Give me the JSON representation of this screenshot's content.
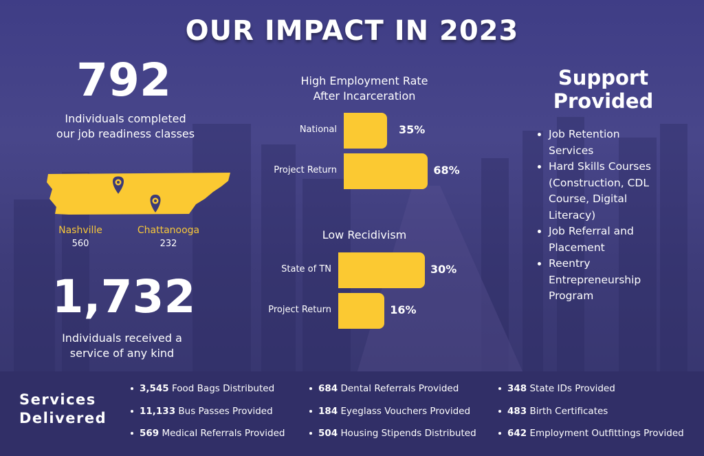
{
  "title": "OUR IMPACT IN 2023",
  "completed": {
    "number": "792",
    "line1": "Individuals completed",
    "line2": "our job readiness classes"
  },
  "locations": [
    {
      "city": "Nashville",
      "count": "560"
    },
    {
      "city": "Chattanooga",
      "count": "232"
    }
  ],
  "served": {
    "number": "1,732",
    "line1": "Individuals received a",
    "line2": "service of any kind"
  },
  "colors": {
    "accent": "#fbc932",
    "background": "#3f3d86",
    "band": "#312f67"
  },
  "chart_data": [
    {
      "type": "bar",
      "orientation": "horizontal",
      "title_line1": "High Employment  Rate",
      "title_line2": "After Incarceration",
      "categories": [
        "National",
        "Project Return"
      ],
      "values": [
        35,
        68
      ],
      "labels": [
        "35%",
        "68%"
      ],
      "unit": "%"
    },
    {
      "type": "bar",
      "orientation": "horizontal",
      "title_line1": "Low Recidivism",
      "categories": [
        "State of TN",
        "Project Return"
      ],
      "values": [
        30,
        16
      ],
      "labels": [
        "30%",
        "16%"
      ],
      "unit": "%"
    }
  ],
  "support": {
    "heading_line1": "Support",
    "heading_line2": "Provided",
    "items": [
      {
        "l1": "Job Retention",
        "l2": "Services"
      },
      {
        "l1": "Hard Skills Courses",
        "l2": "(Construction, CDL",
        "l3": "Course, Digital",
        "l4": "Literacy)"
      },
      {
        "l1": "Job Referral and",
        "l2": "Placement"
      },
      {
        "l1": "Reentry",
        "l2": "Entrepreneurship",
        "l3": "Program"
      }
    ]
  },
  "services": {
    "heading_line1": "Services",
    "heading_line2": "Delivered",
    "items": [
      {
        "num": "3,545",
        "text": "Food Bags Distributed"
      },
      {
        "num": "11,133",
        "text": "Bus Passes Provided"
      },
      {
        "num": "569",
        "text": "Medical Referrals Provided"
      },
      {
        "num": "684",
        "text": "Dental Referrals Provided"
      },
      {
        "num": "184",
        "text": "Eyeglass Vouchers Provided"
      },
      {
        "num": "504",
        "text": "Housing Stipends Distributed"
      },
      {
        "num": "348",
        "text": "State IDs Provided"
      },
      {
        "num": "483",
        "text": "Birth Certificates"
      },
      {
        "num": "642",
        "text": "Employment Outfittings Provided"
      }
    ]
  }
}
